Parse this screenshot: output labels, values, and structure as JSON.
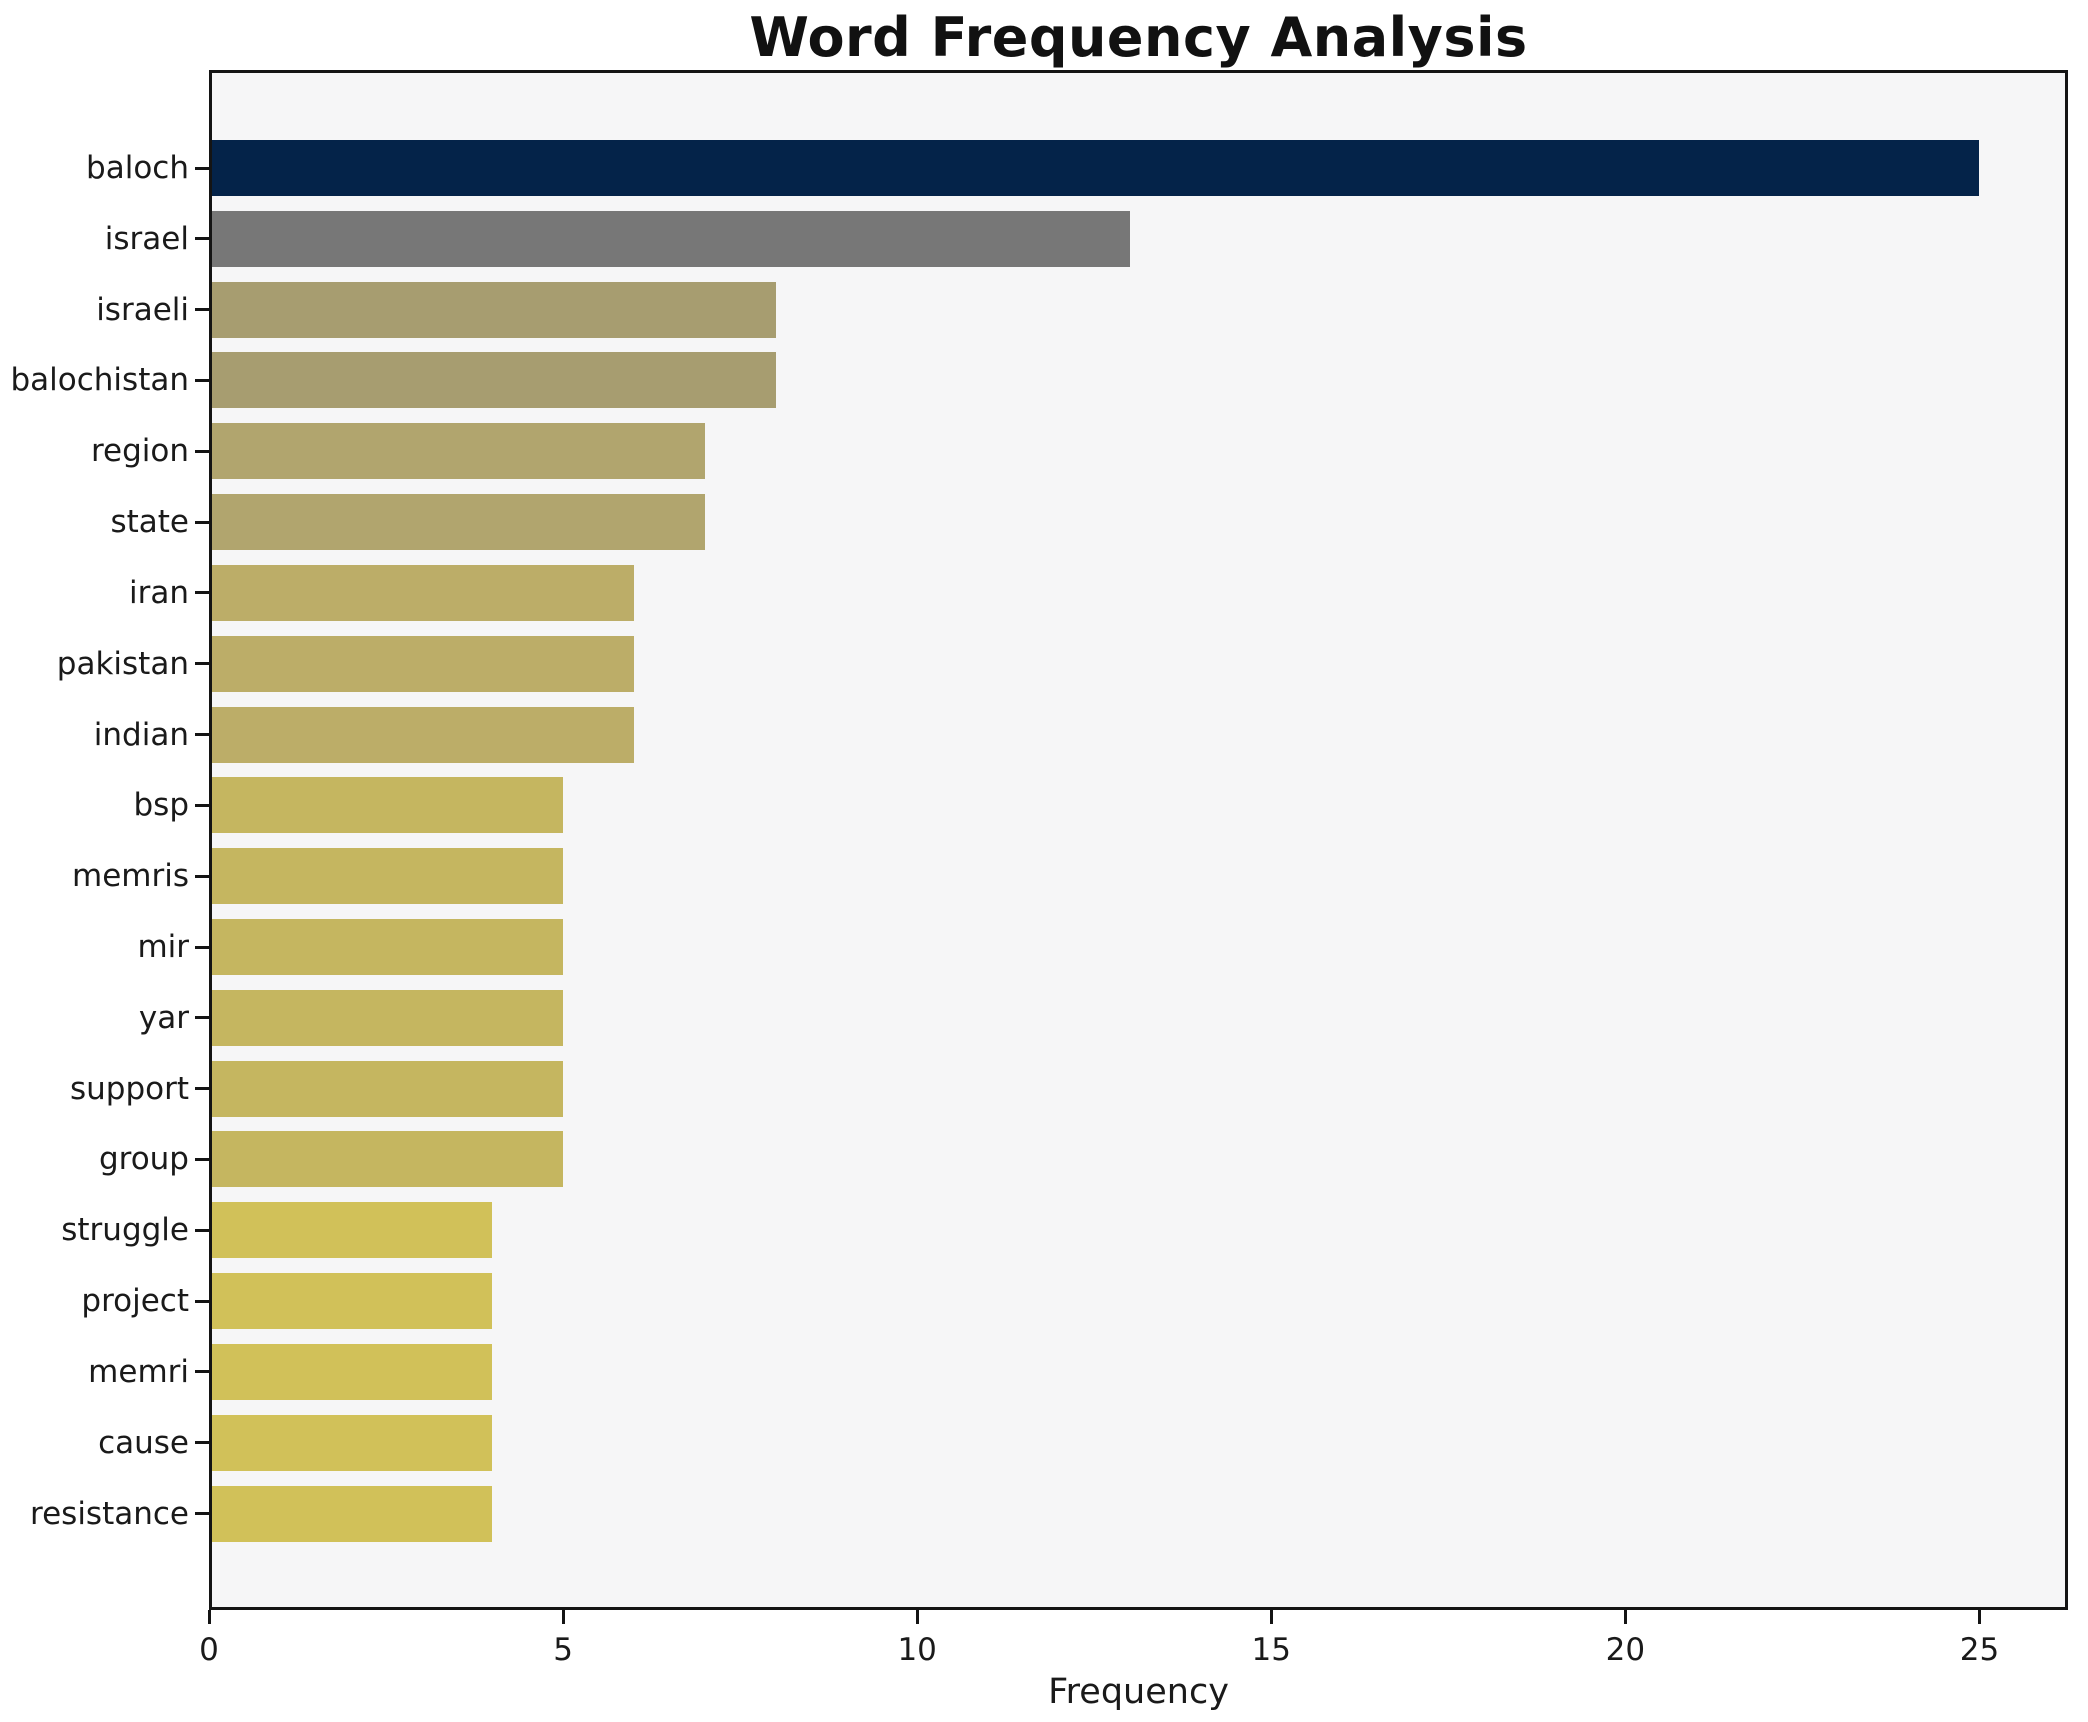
{
  "title": "Word Frequency Analysis",
  "chart_data": {
    "type": "bar",
    "orientation": "horizontal",
    "title": "Word Frequency Analysis",
    "xlabel": "Frequency",
    "ylabel": "",
    "categories": [
      "baloch",
      "israel",
      "israeli",
      "balochistan",
      "region",
      "state",
      "iran",
      "pakistan",
      "indian",
      "bsp",
      "memris",
      "mir",
      "yar",
      "support",
      "group",
      "struggle",
      "project",
      "memri",
      "cause",
      "resistance"
    ],
    "values": [
      25,
      13,
      8,
      8,
      7,
      7,
      6,
      6,
      6,
      5,
      5,
      5,
      5,
      5,
      5,
      4,
      4,
      4,
      4,
      4
    ],
    "bar_colors": [
      "#042349",
      "#777777",
      "#a79d70",
      "#a79d70",
      "#b1a56e",
      "#b1a56e",
      "#bcad68",
      "#bcad68",
      "#bcad68",
      "#c5b660",
      "#c5b660",
      "#c5b660",
      "#c5b660",
      "#c5b660",
      "#c5b660",
      "#d1c159",
      "#d1c159",
      "#d1c159",
      "#d1c159",
      "#d1c159"
    ],
    "xlim": [
      0,
      26.25
    ],
    "xticks": [
      0,
      5,
      10,
      15,
      20,
      25
    ],
    "grid": false,
    "legend": "none",
    "plot_background": "#f6f6f7",
    "figure_background": "#ffffff",
    "spine_color": "#141414",
    "text_color": "#1a1a1a"
  }
}
